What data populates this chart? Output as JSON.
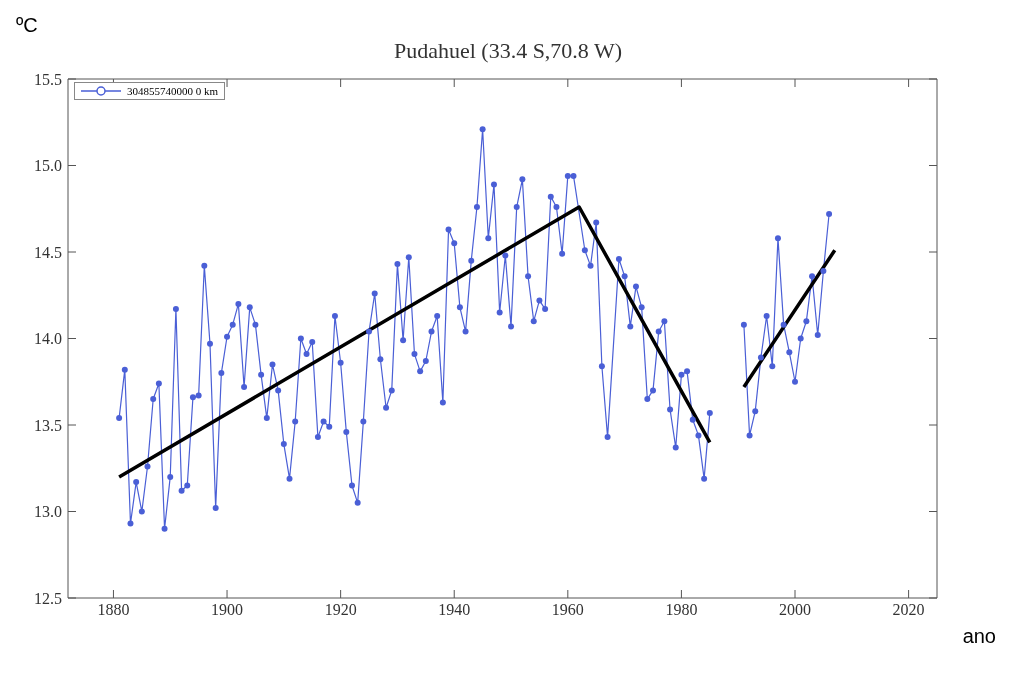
{
  "chart_data": {
    "type": "line",
    "title": "Pudahuel (33.4 S,70.8 W)",
    "xlabel": "ano",
    "ylabel": "ºC",
    "xlim": [
      1872,
      2025
    ],
    "xticks": [
      1880,
      1900,
      1920,
      1940,
      1960,
      1980,
      2000,
      2020
    ],
    "ylim": [
      12.5,
      15.5
    ],
    "yticks": [
      12.5,
      {
        "value": 13,
        "label": "13.0"
      },
      13.5,
      {
        "value": 14,
        "label": "14.0"
      },
      14.5,
      {
        "value": 15,
        "label": "15.0"
      },
      15.5
    ],
    "legend": "top left",
    "marker": "circle",
    "line_style": "solid",
    "series": [
      {
        "name": "304855740000 0 km",
        "color": "#4a5fd6",
        "x": [
          1881,
          1882,
          1883,
          1884,
          1885,
          1886,
          1887,
          1888,
          1889,
          1890,
          1891,
          1892,
          1893,
          1894,
          1895,
          1896,
          1897,
          1898,
          1899,
          1900,
          1901,
          1902,
          1903,
          1904,
          1905,
          1906,
          1907,
          1908,
          1909,
          1910,
          1911,
          1912,
          1913,
          1914,
          1915,
          1916,
          1917,
          1918,
          1919,
          1920,
          1921,
          1922,
          1923,
          1924,
          1925,
          1926,
          1927,
          1928,
          1929,
          1930,
          1931,
          1932,
          1933,
          1934,
          1935,
          1936,
          1937,
          1938,
          1939,
          1940,
          1941,
          1942,
          1943,
          1944,
          1945,
          1946,
          1947,
          1948,
          1949,
          1950,
          1951,
          1952,
          1953,
          1954,
          1955,
          1956,
          1957,
          1958,
          1959,
          1960,
          1961,
          1963,
          1964,
          1965,
          1966,
          1967,
          1969,
          1970,
          1971,
          1972,
          1973,
          1974,
          1975,
          1976,
          1977,
          1978,
          1979,
          1980,
          1981,
          1982,
          1983,
          1984,
          1985,
          1988,
          1991,
          1992,
          1993,
          1994,
          1995,
          1996,
          1997,
          1998,
          1999,
          2000,
          2001,
          2002,
          2003,
          2004,
          2005,
          2006
        ],
        "values": [
          13.54,
          13.82,
          12.93,
          13.17,
          13.0,
          13.26,
          13.65,
          13.74,
          12.9,
          13.2,
          14.17,
          13.12,
          13.15,
          13.66,
          13.67,
          14.42,
          13.97,
          13.02,
          13.8,
          14.01,
          14.08,
          14.2,
          13.72,
          14.18,
          14.08,
          13.79,
          13.54,
          13.85,
          13.7,
          13.39,
          13.19,
          13.52,
          14.0,
          13.91,
          13.98,
          13.43,
          13.52,
          13.49,
          14.13,
          13.86,
          13.46,
          13.15,
          13.05,
          13.52,
          14.04,
          14.26,
          13.88,
          13.6,
          13.7,
          14.43,
          13.99,
          14.47,
          13.91,
          13.81,
          13.87,
          14.04,
          14.13,
          13.63,
          14.63,
          14.55,
          14.18,
          14.04,
          14.45,
          14.76,
          15.21,
          14.58,
          14.89,
          14.15,
          14.48,
          14.07,
          14.76,
          14.92,
          14.36,
          14.1,
          14.22,
          14.17,
          14.82,
          14.76,
          14.49,
          14.94,
          14.94,
          14.51,
          14.42,
          14.67,
          13.84,
          13.43,
          14.46,
          14.36,
          14.07,
          14.3,
          14.18,
          13.65,
          13.7,
          14.04,
          14.1,
          13.59,
          13.37,
          13.79,
          13.81,
          13.53,
          13.44,
          13.19,
          13.57,
          null,
          14.08,
          13.44,
          13.58,
          13.89,
          14.13,
          13.84,
          14.58,
          14.08,
          13.92,
          13.75,
          14.0,
          14.1,
          14.36,
          14.02,
          14.39,
          14.72
        ]
      },
      {
        "type": "line",
        "color": "#000000",
        "marker": "none",
        "x": [
          1881,
          1962,
          1985,
          1988,
          1991,
          2007
        ],
        "values": [
          13.2,
          14.76,
          13.4,
          null,
          13.72,
          14.51
        ]
      }
    ]
  }
}
